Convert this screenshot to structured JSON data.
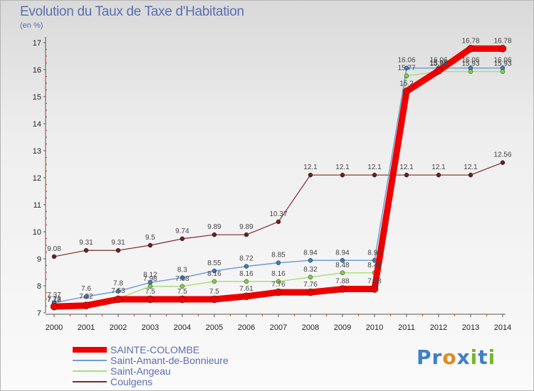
{
  "title": "Evolution du Taux de Taxe d'Habitation",
  "unit": "(en %)",
  "brand": {
    "letters": [
      "P",
      "r",
      "o",
      "x",
      "i",
      "t",
      "i"
    ],
    "colors": [
      "#3f7fc8",
      "#3f7fc8",
      "#e08a1e",
      "#3f7fc8",
      "#76b82a",
      "#3f7fc8",
      "#76b82a"
    ]
  },
  "chart_data": {
    "type": "line",
    "x": [
      2000,
      2001,
      2002,
      2003,
      2004,
      2005,
      2006,
      2007,
      2008,
      2009,
      2010,
      2011,
      2012,
      2013,
      2014
    ],
    "ylim": [
      7,
      17
    ],
    "yticks": [
      7,
      8,
      9,
      10,
      11,
      12,
      13,
      14,
      15,
      16,
      17
    ],
    "grid": false,
    "legend_position": "bottom-left",
    "series": [
      {
        "name": "SAINTE-COLOMBE",
        "color": "#ee0000",
        "width": 9,
        "values": [
          7.23,
          7.27,
          7.5,
          7.5,
          7.5,
          7.5,
          7.61,
          7.76,
          7.76,
          7.88,
          7.88,
          15.2,
          15.96,
          16.78,
          16.78
        ],
        "labels": [
          "7.23",
          "",
          "",
          "7.5",
          "7.5",
          "7.5",
          "7.61",
          "7.76",
          "7.76",
          "7.88",
          "7.88",
          "15.2",
          "15.96",
          "16.78",
          "16.78"
        ]
      },
      {
        "name": "Saint-Amant-de-Bonnieure",
        "color": "#6fa0d4",
        "width": 1.5,
        "values": [
          7.37,
          7.6,
          7.8,
          8.12,
          8.3,
          8.55,
          8.72,
          8.85,
          8.94,
          8.94,
          8.94,
          16.06,
          16.06,
          16.06,
          16.06
        ],
        "labels": [
          "7.37",
          "7.6",
          "7.8",
          "8.12",
          "8.3",
          "8.55",
          "8.72",
          "8.85",
          "8.94",
          "8.94",
          "8.94",
          "16.06",
          "16.06",
          "16.06",
          "16.06"
        ]
      },
      {
        "name": "Saint-Angeau",
        "color": "#a9e07a",
        "width": 1.5,
        "values": [
          7.18,
          7.32,
          7.53,
          7.98,
          7.98,
          8.16,
          8.16,
          8.16,
          8.32,
          8.48,
          8.48,
          15.77,
          15.93,
          15.93,
          15.93
        ],
        "labels": [
          "7.18",
          "7.32",
          "7.53",
          "7.98",
          "7.98",
          "8.16",
          "8.16",
          "8.16",
          "8.32",
          "8.48",
          "8.48",
          "15.77",
          "15.93",
          "15.93",
          "15.93"
        ]
      },
      {
        "name": "Coulgens",
        "color": "#7a2a30",
        "width": 1.2,
        "values": [
          9.08,
          9.31,
          9.31,
          9.5,
          9.74,
          9.89,
          9.89,
          10.37,
          12.1,
          12.1,
          12.1,
          12.1,
          12.1,
          12.1,
          12.56
        ],
        "labels": [
          "9.08",
          "9.31",
          "9.31",
          "9.5",
          "9.74",
          "9.89",
          "9.89",
          "10.37",
          "12.1",
          "12.1",
          "12.1",
          "12.1",
          "12.1",
          "12.1",
          "12.56"
        ]
      }
    ]
  }
}
